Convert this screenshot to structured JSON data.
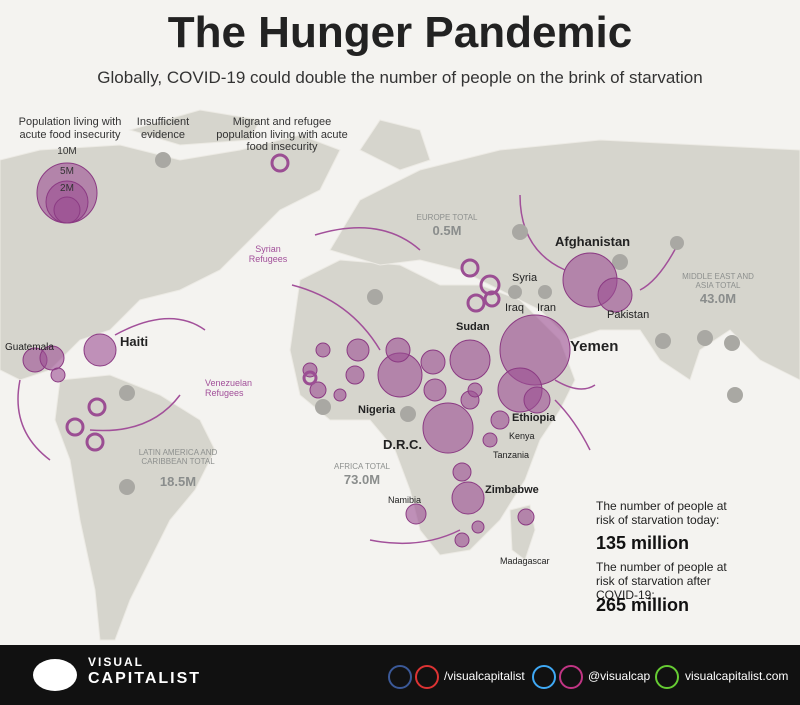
{
  "header": {
    "title": "The Hunger Pandemic",
    "subtitle": "Globally, COVID-19 could double the number of people on the brink of starvation"
  },
  "legend": {
    "population_label": "Population living with acute food insecurity",
    "sizes": [
      "10M",
      "5M",
      "2M"
    ],
    "insufficient": "Insufficient evidence",
    "migrant": "Migrant and refugee population living with acute food insecurity"
  },
  "regions": [
    {
      "name": "EUROPE TOTAL",
      "total": "0.5M"
    },
    {
      "name": "MIDDLE EAST AND ASIA TOTAL",
      "total": "43.0M"
    },
    {
      "name": "LATIN AMERICA AND CARIBBEAN TOTAL",
      "total": "18.5M"
    },
    {
      "name": "AFRICA TOTAL",
      "total": "73.0M"
    }
  ],
  "countries": [
    "Afghanistan",
    "Syria",
    "Iraq",
    "Iran",
    "Pakistan",
    "Yemen",
    "Sudan",
    "Haiti",
    "Guatemala",
    "Nigeria",
    "Ethiopia",
    "D.R.C.",
    "Kenya",
    "Tanzania",
    "Zimbabwe",
    "Namibia",
    "Madagascar"
  ],
  "refugees": [
    "Syrian Refugees",
    "Venezuelan Refugees"
  ],
  "stats": [
    {
      "label": "The number of people at risk of starvation today:",
      "value": "135 million"
    },
    {
      "label": "The number of people at risk of starvation after COVID-19:",
      "value": "265 million"
    }
  ],
  "footer": {
    "brand_top": "VISUAL",
    "brand_bottom": "CAPITALIST",
    "links": [
      "/visualcapitalist",
      "@visualcap",
      "visualcapitalist.com"
    ]
  }
}
